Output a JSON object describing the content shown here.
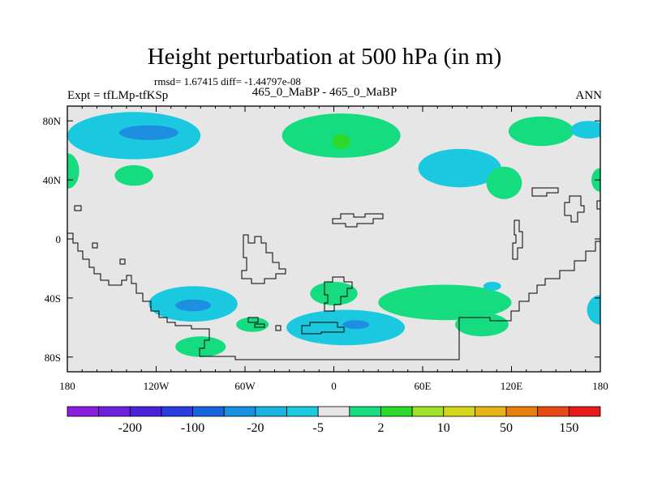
{
  "chart_data": {
    "type": "heatmap",
    "title": "Height perturbation at 500 hPa (in m)",
    "stats_text": "rmsd= 1.67415 diff= -1.44797e-08",
    "left_label": "Expt = tfLMp-tfKSp",
    "center_label": "465_0_MaBP - 465_0_MaBP",
    "right_label": "ANN",
    "xlabel": "",
    "ylabel": "",
    "xlim": [
      -180,
      180
    ],
    "ylim": [
      -90,
      90
    ],
    "x_ticks": [
      {
        "value": -180,
        "label": "180"
      },
      {
        "value": -120,
        "label": "120W"
      },
      {
        "value": -60,
        "label": "60W"
      },
      {
        "value": 0,
        "label": "0"
      },
      {
        "value": 60,
        "label": "60E"
      },
      {
        "value": 120,
        "label": "120E"
      },
      {
        "value": 180,
        "label": "180"
      }
    ],
    "y_ticks": [
      {
        "value": 80,
        "label": "80N"
      },
      {
        "value": 40,
        "label": "40N"
      },
      {
        "value": 0,
        "label": "0"
      },
      {
        "value": -40,
        "label": "40S"
      },
      {
        "value": -80,
        "label": "80S"
      }
    ],
    "colorbar": {
      "colors": [
        "#8a1de0",
        "#6d21dd",
        "#4a22d8",
        "#2a3ee0",
        "#1565dd",
        "#1890e2",
        "#1ab2e0",
        "#1acadf",
        "#e6e6e6",
        "#16dc80",
        "#2ed82a",
        "#9ee22a",
        "#d6d61c",
        "#e6b414",
        "#e67e10",
        "#e64a12",
        "#e61a1a"
      ],
      "labels": [
        {
          "after_index": 1,
          "text": "-200"
        },
        {
          "after_index": 3,
          "text": "-100"
        },
        {
          "after_index": 5,
          "text": "-20"
        },
        {
          "after_index": 7,
          "text": "-5"
        },
        {
          "after_index": 9,
          "text": "2"
        },
        {
          "after_index": 11,
          "text": "10"
        },
        {
          "after_index": 13,
          "text": "50"
        },
        {
          "after_index": 15,
          "text": "150"
        }
      ]
    },
    "regions": [
      {
        "name": "neg-north-pacific",
        "level": -5,
        "lon": -135,
        "lat": 70,
        "lon_radius": 45,
        "lat_radius": 16
      },
      {
        "name": "neg-north-pacific-core",
        "level": -20,
        "lon": -125,
        "lat": 72,
        "lon_radius": 20,
        "lat_radius": 5
      },
      {
        "name": "pos-north-pacific-east",
        "level": 2,
        "lon": -135,
        "lat": 43,
        "lon_radius": 13,
        "lat_radius": 7
      },
      {
        "name": "pos-far-west-north",
        "level": 2,
        "lon": -180,
        "lat": 46,
        "lon_radius": 8,
        "lat_radius": 12
      },
      {
        "name": "pos-north-atlantic",
        "level": 2,
        "lon": 5,
        "lat": 70,
        "lon_radius": 40,
        "lat_radius": 15
      },
      {
        "name": "pos-north-atlantic-core",
        "level": 10,
        "lon": 5,
        "lat": 66,
        "lon_radius": 6,
        "lat_radius": 5
      },
      {
        "name": "neg-eurasia",
        "level": -5,
        "lon": 85,
        "lat": 48,
        "lon_radius": 28,
        "lat_radius": 13
      },
      {
        "name": "pos-eurasia-east",
        "level": 2,
        "lon": 115,
        "lat": 38,
        "lon_radius": 12,
        "lat_radius": 11
      },
      {
        "name": "pos-east-siberia",
        "level": 2,
        "lon": 140,
        "lat": 73,
        "lon_radius": 22,
        "lat_radius": 10
      },
      {
        "name": "neg-east-arctic",
        "level": -5,
        "lon": 172,
        "lat": 74,
        "lon_radius": 12,
        "lat_radius": 6
      },
      {
        "name": "pos-far-east-north",
        "level": 2,
        "lon": 180,
        "lat": 40,
        "lon_radius": 6,
        "lat_radius": 8
      },
      {
        "name": "neg-south-pacific",
        "level": -5,
        "lon": -95,
        "lat": -44,
        "lon_radius": 30,
        "lat_radius": 12
      },
      {
        "name": "neg-south-pacific-core",
        "level": -20,
        "lon": -95,
        "lat": -45,
        "lon_radius": 12,
        "lat_radius": 4
      },
      {
        "name": "pos-south-pacific-south",
        "level": 2,
        "lon": -90,
        "lat": -73,
        "lon_radius": 17,
        "lat_radius": 7
      },
      {
        "name": "pos-south-atlantic-west",
        "level": 2,
        "lon": -55,
        "lat": -58,
        "lon_radius": 11,
        "lat_radius": 5
      },
      {
        "name": "pos-south-atlantic",
        "level": 2,
        "lon": 0,
        "lat": -37,
        "lon_radius": 16,
        "lat_radius": 8
      },
      {
        "name": "neg-south-atlantic",
        "level": -5,
        "lon": 8,
        "lat": -60,
        "lon_radius": 40,
        "lat_radius": 12
      },
      {
        "name": "neg-south-atlantic-core",
        "level": -20,
        "lon": 15,
        "lat": -58,
        "lon_radius": 9,
        "lat_radius": 3
      },
      {
        "name": "pos-south-indian",
        "level": 2,
        "lon": 75,
        "lat": -43,
        "lon_radius": 45,
        "lat_radius": 12
      },
      {
        "name": "neg-south-indian-small",
        "level": -5,
        "lon": 107,
        "lat": -32,
        "lon_radius": 6,
        "lat_radius": 3
      },
      {
        "name": "pos-south-indian-east",
        "level": 2,
        "lon": 100,
        "lat": -58,
        "lon_radius": 18,
        "lat_radius": 8
      },
      {
        "name": "neg-far-east-south",
        "level": -5,
        "lon": 180,
        "lat": -48,
        "lon_radius": 9,
        "lat_radius": 10
      }
    ]
  }
}
